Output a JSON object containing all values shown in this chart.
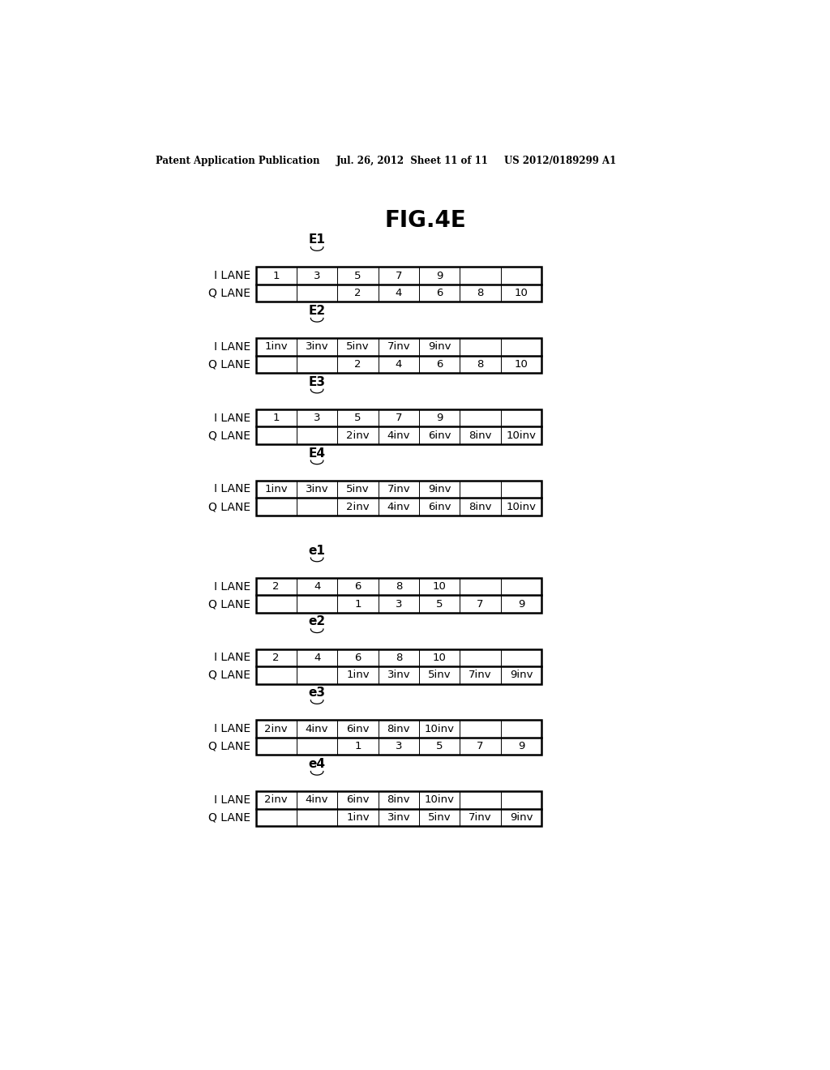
{
  "title": "FIG.4E",
  "header_left": "Patent Application Publication",
  "header_mid": "Jul. 26, 2012  Sheet 11 of 11",
  "header_right": "US 2012/0189299 A1",
  "background_color": "#ffffff",
  "diagrams": [
    {
      "label": "E1",
      "i_lane": [
        "1",
        "3",
        "5",
        "7",
        "9",
        "",
        ""
      ],
      "q_lane": [
        "",
        "",
        "2",
        "4",
        "6",
        "8",
        "10"
      ]
    },
    {
      "label": "E2",
      "i_lane": [
        "1inv",
        "3inv",
        "5inv",
        "7inv",
        "9inv",
        "",
        ""
      ],
      "q_lane": [
        "",
        "",
        "2",
        "4",
        "6",
        "8",
        "10"
      ]
    },
    {
      "label": "E3",
      "i_lane": [
        "1",
        "3",
        "5",
        "7",
        "9",
        "",
        ""
      ],
      "q_lane": [
        "",
        "",
        "2inv",
        "4inv",
        "6inv",
        "8inv",
        "10inv"
      ]
    },
    {
      "label": "E4",
      "i_lane": [
        "1inv",
        "3inv",
        "5inv",
        "7inv",
        "9inv",
        "",
        ""
      ],
      "q_lane": [
        "",
        "",
        "2inv",
        "4inv",
        "6inv",
        "8inv",
        "10inv"
      ]
    },
    {
      "label": "e1",
      "i_lane": [
        "2",
        "4",
        "6",
        "8",
        "10",
        "",
        ""
      ],
      "q_lane": [
        "",
        "",
        "1",
        "3",
        "5",
        "7",
        "9"
      ]
    },
    {
      "label": "e2",
      "i_lane": [
        "2",
        "4",
        "6",
        "8",
        "10",
        "",
        ""
      ],
      "q_lane": [
        "",
        "",
        "1inv",
        "3inv",
        "5inv",
        "7inv",
        "9inv"
      ]
    },
    {
      "label": "e3",
      "i_lane": [
        "2inv",
        "4inv",
        "6inv",
        "8inv",
        "10inv",
        "",
        ""
      ],
      "q_lane": [
        "",
        "",
        "1",
        "3",
        "5",
        "7",
        "9"
      ]
    },
    {
      "label": "e4",
      "i_lane": [
        "2inv",
        "4inv",
        "6inv",
        "8inv",
        "10inv",
        "",
        ""
      ],
      "q_lane": [
        "",
        "",
        "1inv",
        "3inv",
        "5inv",
        "7inv",
        "9inv"
      ]
    }
  ],
  "num_cols": 7,
  "font_size_header": 8.5,
  "font_size_title": 20,
  "font_size_lane_label": 10,
  "font_size_cell": 9.5,
  "font_size_diag_label": 11
}
